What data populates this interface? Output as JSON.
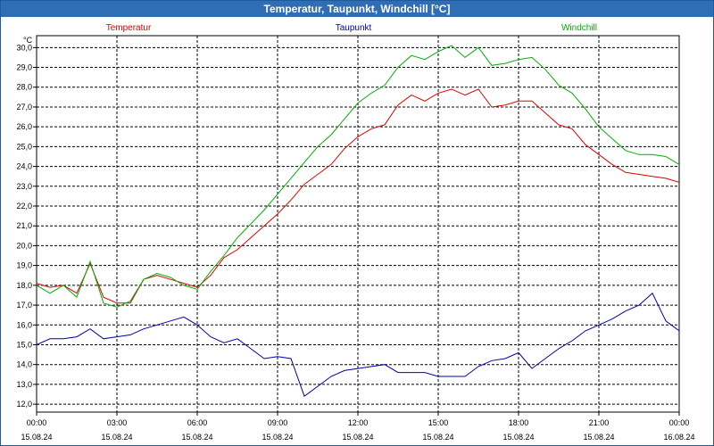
{
  "window": {
    "title": "Temperatur, Taupunkt, Windchill [°C]"
  },
  "chart_data": {
    "type": "line",
    "title": "Temperatur, Taupunkt, Windchill [°C]",
    "ylabel": "°C",
    "ylim": [
      11.6,
      30.6
    ],
    "xlim": [
      0,
      24
    ],
    "grid": true,
    "y_ticks": [
      "12,0",
      "13,0",
      "14,0",
      "15,0",
      "16,0",
      "17,0",
      "18,0",
      "19,0",
      "20,0",
      "21,0",
      "22,0",
      "23,0",
      "24,0",
      "25,0",
      "26,0",
      "27,0",
      "28,0",
      "29,0",
      "30,0"
    ],
    "x_ticks": [
      {
        "time": "00:00",
        "date": "15.08.24"
      },
      {
        "time": "03:00",
        "date": "15.08.24"
      },
      {
        "time": "06:00",
        "date": "15.08.24"
      },
      {
        "time": "09:00",
        "date": "15.08.24"
      },
      {
        "time": "12:00",
        "date": "15.08.24"
      },
      {
        "time": "15:00",
        "date": "15.08.24"
      },
      {
        "time": "18:00",
        "date": "15.08.24"
      },
      {
        "time": "21:00",
        "date": "15.08.24"
      },
      {
        "time": "00:00",
        "date": "16.08.24"
      }
    ],
    "series": [
      {
        "name": "Temperatur",
        "color": "#e00000",
        "x": [
          0,
          0.5,
          1,
          1.5,
          2,
          2.5,
          3,
          3.5,
          4,
          4.5,
          5,
          5.5,
          6,
          6.5,
          7,
          7.5,
          8,
          8.5,
          9,
          9.5,
          10,
          10.5,
          11,
          11.5,
          12,
          12.5,
          13,
          13.5,
          14,
          14.5,
          15,
          15.5,
          16,
          16.5,
          17,
          17.5,
          18,
          18.5,
          19,
          19.5,
          20,
          20.5,
          21,
          21.5,
          22,
          22.5,
          23,
          23.5,
          24
        ],
        "values": [
          18.1,
          17.9,
          18.0,
          17.6,
          19.1,
          17.4,
          17.1,
          17.1,
          18.3,
          18.5,
          18.3,
          18.1,
          17.9,
          18.5,
          19.4,
          19.8,
          20.4,
          21.0,
          21.6,
          22.3,
          23.1,
          23.6,
          24.1,
          24.9,
          25.5,
          25.9,
          26.1,
          27.1,
          27.6,
          27.3,
          27.7,
          27.9,
          27.6,
          27.9,
          27.0,
          27.1,
          27.3,
          27.3,
          26.7,
          26.1,
          25.9,
          25.1,
          24.6,
          24.1,
          23.7,
          23.6,
          23.5,
          23.4,
          23.2
        ]
      },
      {
        "name": "Taupunkt",
        "color": "#0000b0",
        "x": [
          0,
          0.5,
          1,
          1.5,
          2,
          2.5,
          3,
          3.5,
          4,
          4.5,
          5,
          5.5,
          6,
          6.5,
          7,
          7.5,
          8,
          8.5,
          9,
          9.5,
          10,
          10.5,
          11,
          11.5,
          12,
          12.5,
          13,
          13.5,
          14,
          14.5,
          15,
          15.5,
          16,
          16.5,
          17,
          17.5,
          18,
          18.5,
          19,
          19.5,
          20,
          20.5,
          21,
          21.5,
          22,
          22.5,
          23,
          23.5,
          24
        ],
        "values": [
          15.0,
          15.3,
          15.3,
          15.4,
          15.8,
          15.3,
          15.4,
          15.5,
          15.8,
          16.0,
          16.2,
          16.4,
          16.0,
          15.4,
          15.1,
          15.3,
          14.8,
          14.3,
          14.4,
          14.3,
          12.4,
          12.9,
          13.4,
          13.7,
          13.8,
          13.9,
          14.0,
          13.6,
          13.6,
          13.6,
          13.4,
          13.4,
          13.4,
          13.9,
          14.2,
          14.3,
          14.6,
          13.8,
          14.3,
          14.8,
          15.2,
          15.7,
          16.0,
          16.3,
          16.7,
          17.0,
          17.6,
          16.2,
          15.7
        ]
      },
      {
        "name": "Windchill",
        "color": "#00b000",
        "x": [
          0,
          0.5,
          1,
          1.5,
          2,
          2.5,
          3,
          3.5,
          4,
          4.5,
          5,
          5.5,
          6,
          6.5,
          7,
          7.5,
          8,
          8.5,
          9,
          9.5,
          10,
          10.5,
          11,
          11.5,
          12,
          12.5,
          13,
          13.5,
          14,
          14.5,
          15,
          15.5,
          16,
          16.5,
          17,
          17.5,
          18,
          18.5,
          19,
          19.5,
          20,
          20.5,
          21,
          21.5,
          22,
          22.5,
          23,
          23.5,
          24
        ],
        "values": [
          18.0,
          17.6,
          18.0,
          17.4,
          19.2,
          17.1,
          16.9,
          17.2,
          18.3,
          18.6,
          18.4,
          18.0,
          17.8,
          18.7,
          19.5,
          20.4,
          21.1,
          21.8,
          22.6,
          23.4,
          24.2,
          25.0,
          25.6,
          26.4,
          27.2,
          27.7,
          28.1,
          29.0,
          29.6,
          29.4,
          29.8,
          30.1,
          29.5,
          30.0,
          29.1,
          29.2,
          29.4,
          29.5,
          28.9,
          28.1,
          27.7,
          26.9,
          26.0,
          25.4,
          24.8,
          24.6,
          24.6,
          24.5,
          24.1
        ]
      }
    ]
  }
}
